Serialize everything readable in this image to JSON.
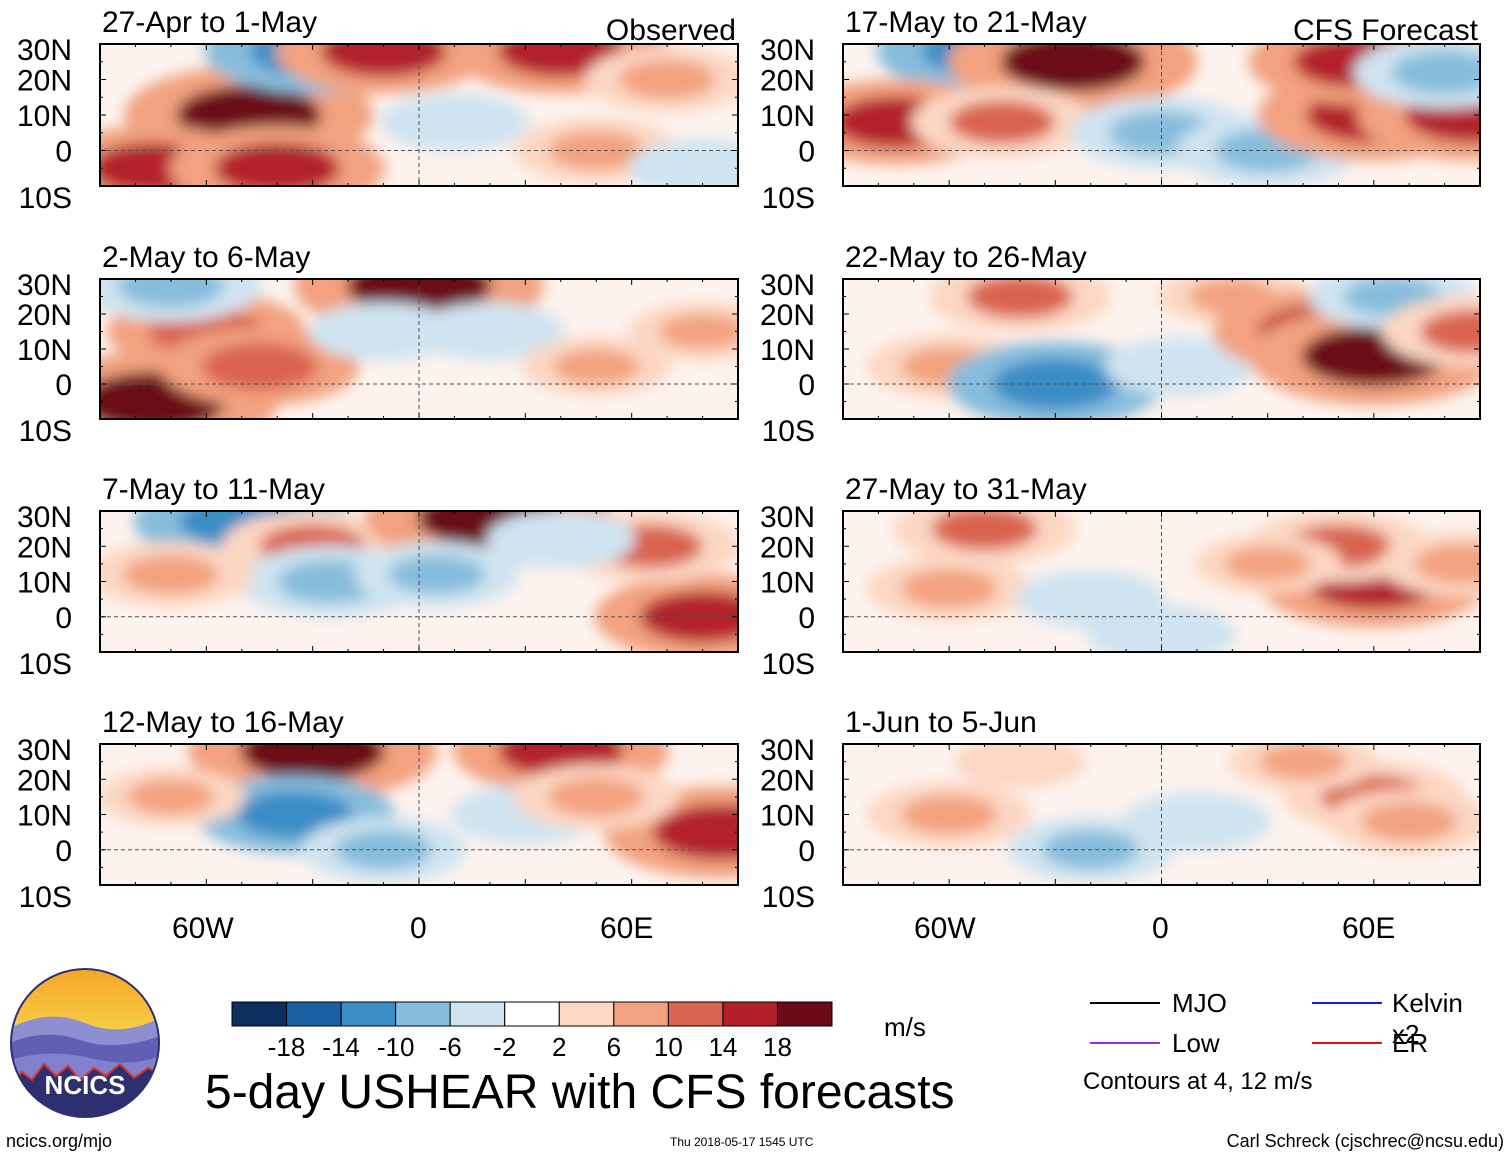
{
  "figure_title": "5-day USHEAR with CFS forecasts",
  "colorbar": {
    "ticks": [
      "-18",
      "-14",
      "-10",
      "-6",
      "-2",
      "2",
      "6",
      "10",
      "14",
      "18"
    ],
    "colors": [
      "#0b2f5e",
      "#1c5fa5",
      "#3b8dc6",
      "#86bddc",
      "#cfe4f0",
      "#ffffff",
      "#fcd7c2",
      "#f2a27f",
      "#d96450",
      "#b3202a",
      "#6b0a19"
    ],
    "unit": "m/s"
  },
  "legend": {
    "items": [
      {
        "label": "MJO",
        "color": "#000000"
      },
      {
        "label": "Kelvin x2",
        "color": "#1020e0"
      },
      {
        "label": "Low",
        "color": "#9933dd"
      },
      {
        "label": "ER",
        "color": "#e01010"
      }
    ],
    "note": "Contours at 4, 12 m/s"
  },
  "logo_text": "NCICS",
  "footer": {
    "url": "ncics.org/mjo",
    "timestamp": "Thu 2018-05-17 1545 UTC",
    "author": "Carl Schreck (cjschrec@ncsu.edu)"
  },
  "axes": {
    "lat_labels": [
      "30N",
      "20N",
      "10N",
      "0",
      "10S"
    ],
    "lon_labels": [
      "60W",
      "0",
      "60E"
    ]
  },
  "chart_data": [
    {
      "type": "heatmap",
      "title": "27-Apr to 1-May",
      "tag": "Observed",
      "lat_range": [
        -10,
        30
      ],
      "lon_range": [
        -90,
        90
      ],
      "anomalies": [
        {
          "lon": -48,
          "lat": 10,
          "value": 18
        },
        {
          "lon": -75,
          "lat": -5,
          "value": 14
        },
        {
          "lon": -40,
          "lat": -5,
          "value": 14
        },
        {
          "lon": -30,
          "lat": 28,
          "value": -14
        },
        {
          "lon": -10,
          "lat": 28,
          "value": 14
        },
        {
          "lon": 40,
          "lat": 28,
          "value": 14
        },
        {
          "lon": 50,
          "lat": 0,
          "value": 8
        },
        {
          "lon": 10,
          "lat": 8,
          "value": -6
        },
        {
          "lon": 70,
          "lat": 20,
          "value": 8
        },
        {
          "lon": 80,
          "lat": -5,
          "value": -6
        }
      ]
    },
    {
      "type": "heatmap",
      "title": "17-May to 21-May",
      "tag": "CFS Forecast",
      "lat_range": [
        -10,
        30
      ],
      "lon_range": [
        -90,
        90
      ],
      "anomalies": [
        {
          "lon": -50,
          "lat": 28,
          "value": -14
        },
        {
          "lon": -25,
          "lat": 25,
          "value": 18
        },
        {
          "lon": -75,
          "lat": 8,
          "value": 14
        },
        {
          "lon": -45,
          "lat": 8,
          "value": 10
        },
        {
          "lon": 0,
          "lat": 5,
          "value": -10
        },
        {
          "lon": 30,
          "lat": 0,
          "value": -10
        },
        {
          "lon": 60,
          "lat": 10,
          "value": 16
        },
        {
          "lon": 55,
          "lat": 25,
          "value": 14
        },
        {
          "lon": 88,
          "lat": 10,
          "value": 16
        },
        {
          "lon": 80,
          "lat": 22,
          "value": -10
        }
      ]
    },
    {
      "type": "heatmap",
      "title": "2-May to 6-May",
      "tag": "",
      "lat_range": [
        -10,
        30
      ],
      "lon_range": [
        -90,
        90
      ],
      "anomalies": [
        {
          "lon": -75,
          "lat": -5,
          "value": 18
        },
        {
          "lon": -60,
          "lat": 15,
          "value": 12
        },
        {
          "lon": -45,
          "lat": 5,
          "value": 12
        },
        {
          "lon": -70,
          "lat": 28,
          "value": -10
        },
        {
          "lon": 0,
          "lat": 28,
          "value": 18
        },
        {
          "lon": -10,
          "lat": 15,
          "value": -6
        },
        {
          "lon": 20,
          "lat": 15,
          "value": -6
        },
        {
          "lon": 50,
          "lat": 5,
          "value": 6
        },
        {
          "lon": 80,
          "lat": 15,
          "value": 6
        }
      ]
    },
    {
      "type": "heatmap",
      "title": "22-May to 26-May",
      "tag": "",
      "lat_range": [
        -10,
        30
      ],
      "lon_range": [
        -90,
        90
      ],
      "anomalies": [
        {
          "lon": -40,
          "lat": 25,
          "value": 10
        },
        {
          "lon": 20,
          "lat": 25,
          "value": 6
        },
        {
          "lon": -60,
          "lat": 5,
          "value": 8
        },
        {
          "lon": -30,
          "lat": 0,
          "value": -14
        },
        {
          "lon": 5,
          "lat": 5,
          "value": -6
        },
        {
          "lon": 45,
          "lat": 15,
          "value": 14
        },
        {
          "lon": 60,
          "lat": 8,
          "value": 18
        },
        {
          "lon": 65,
          "lat": 25,
          "value": -8
        },
        {
          "lon": 88,
          "lat": 15,
          "value": 10
        }
      ]
    },
    {
      "type": "heatmap",
      "title": "7-May to 11-May",
      "tag": "",
      "lat_range": [
        -10,
        30
      ],
      "lon_range": [
        -90,
        90
      ],
      "anomalies": [
        {
          "lon": -50,
          "lat": 27,
          "value": -14
        },
        {
          "lon": -30,
          "lat": 20,
          "value": 10
        },
        {
          "lon": 20,
          "lat": 28,
          "value": 18
        },
        {
          "lon": -25,
          "lat": 10,
          "value": -10
        },
        {
          "lon": 5,
          "lat": 12,
          "value": -8
        },
        {
          "lon": 80,
          "lat": 0,
          "value": 14
        },
        {
          "lon": 65,
          "lat": 20,
          "value": 10
        },
        {
          "lon": 40,
          "lat": 22,
          "value": -6
        },
        {
          "lon": -70,
          "lat": 12,
          "value": 8
        }
      ]
    },
    {
      "type": "heatmap",
      "title": "27-May to 31-May",
      "tag": "",
      "lat_range": [
        -10,
        30
      ],
      "lon_range": [
        -90,
        90
      ],
      "anomalies": [
        {
          "lon": -50,
          "lat": 25,
          "value": 10
        },
        {
          "lon": -60,
          "lat": 8,
          "value": 8
        },
        {
          "lon": -20,
          "lat": 5,
          "value": -6
        },
        {
          "lon": 0,
          "lat": -5,
          "value": -6
        },
        {
          "lon": 60,
          "lat": 10,
          "value": 16
        },
        {
          "lon": 50,
          "lat": 20,
          "value": 10
        },
        {
          "lon": 85,
          "lat": 15,
          "value": 8
        },
        {
          "lon": 30,
          "lat": 15,
          "value": 6
        }
      ]
    },
    {
      "type": "heatmap",
      "title": "12-May to 16-May",
      "tag": "",
      "lat_range": [
        -10,
        30
      ],
      "lon_range": [
        -90,
        90
      ],
      "anomalies": [
        {
          "lon": -30,
          "lat": 28,
          "value": 18
        },
        {
          "lon": 40,
          "lat": 28,
          "value": 14
        },
        {
          "lon": -35,
          "lat": 10,
          "value": -12
        },
        {
          "lon": -10,
          "lat": 0,
          "value": -8
        },
        {
          "lon": 30,
          "lat": 10,
          "value": -6
        },
        {
          "lon": 85,
          "lat": 5,
          "value": 16
        },
        {
          "lon": -70,
          "lat": 15,
          "value": 6
        },
        {
          "lon": 50,
          "lat": 15,
          "value": 8
        }
      ]
    },
    {
      "type": "heatmap",
      "title": "1-Jun to 5-Jun",
      "tag": "",
      "lat_range": [
        -10,
        30
      ],
      "lon_range": [
        -90,
        90
      ],
      "anomalies": [
        {
          "lon": -60,
          "lat": 10,
          "value": 8
        },
        {
          "lon": -20,
          "lat": 0,
          "value": -8
        },
        {
          "lon": 10,
          "lat": 8,
          "value": -6
        },
        {
          "lon": 60,
          "lat": 15,
          "value": 10
        },
        {
          "lon": 70,
          "lat": 8,
          "value": 8
        },
        {
          "lon": 40,
          "lat": 25,
          "value": 6
        },
        {
          "lon": -40,
          "lat": 25,
          "value": 4
        }
      ]
    }
  ]
}
